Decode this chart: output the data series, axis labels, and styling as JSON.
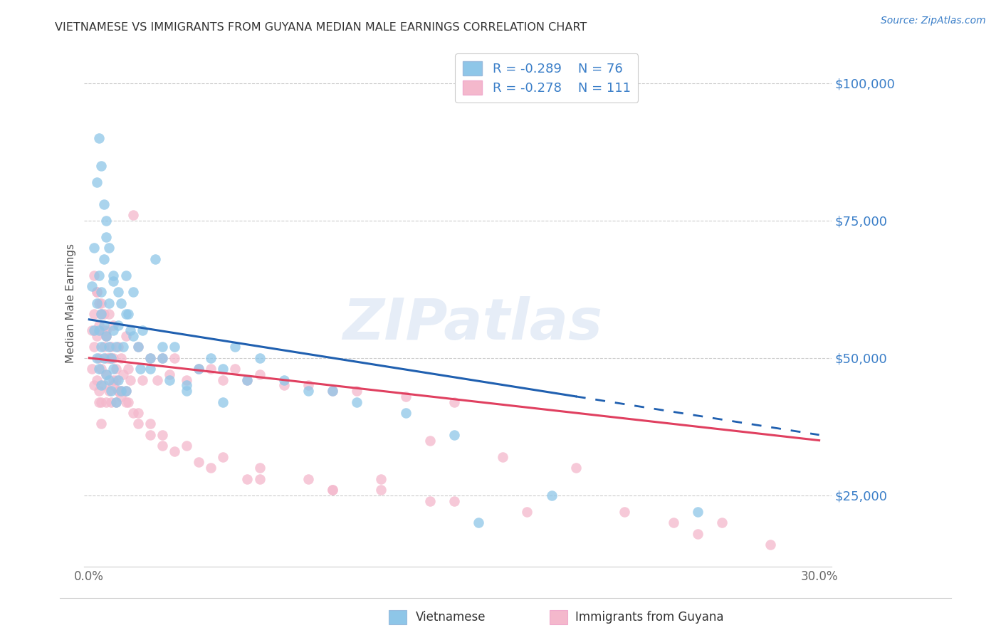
{
  "title": "VIETNAMESE VS IMMIGRANTS FROM GUYANA MEDIAN MALE EARNINGS CORRELATION CHART",
  "source": "Source: ZipAtlas.com",
  "ylabel": "Median Male Earnings",
  "xlim": [
    -0.002,
    0.305
  ],
  "ylim": [
    12000,
    108000
  ],
  "yticks": [
    25000,
    50000,
    75000,
    100000
  ],
  "ytick_labels": [
    "$25,000",
    "$50,000",
    "$75,000",
    "$100,000"
  ],
  "xticks": [
    0.0,
    0.05,
    0.1,
    0.15,
    0.2,
    0.25,
    0.3
  ],
  "xtick_labels": [
    "0.0%",
    "",
    "",
    "",
    "",
    "",
    "30.0%"
  ],
  "color_viet": "#8ec6e8",
  "color_guyana": "#f4b8cc",
  "color_viet_line": "#2060b0",
  "color_guyana_line": "#e04060",
  "color_axis_text": "#3a7ec8",
  "color_title": "#333333",
  "watermark": "ZIPatlas",
  "background": "#ffffff",
  "viet_intercept": 57000,
  "viet_slope": -70000,
  "guyana_intercept": 50000,
  "guyana_slope": -50000,
  "viet_x": [
    0.001,
    0.002,
    0.002,
    0.003,
    0.003,
    0.003,
    0.004,
    0.004,
    0.004,
    0.005,
    0.005,
    0.005,
    0.005,
    0.006,
    0.006,
    0.006,
    0.007,
    0.007,
    0.007,
    0.008,
    0.008,
    0.008,
    0.009,
    0.009,
    0.01,
    0.01,
    0.01,
    0.011,
    0.011,
    0.012,
    0.012,
    0.013,
    0.013,
    0.014,
    0.015,
    0.015,
    0.016,
    0.017,
    0.018,
    0.02,
    0.021,
    0.022,
    0.025,
    0.027,
    0.03,
    0.033,
    0.035,
    0.04,
    0.045,
    0.05,
    0.055,
    0.06,
    0.065,
    0.07,
    0.08,
    0.09,
    0.1,
    0.11,
    0.13,
    0.15,
    0.004,
    0.005,
    0.006,
    0.007,
    0.008,
    0.01,
    0.012,
    0.015,
    0.018,
    0.025,
    0.03,
    0.04,
    0.055,
    0.16,
    0.19,
    0.25
  ],
  "viet_y": [
    63000,
    70000,
    55000,
    60000,
    82000,
    50000,
    55000,
    65000,
    48000,
    58000,
    52000,
    62000,
    45000,
    56000,
    50000,
    68000,
    54000,
    47000,
    72000,
    52000,
    46000,
    60000,
    50000,
    44000,
    55000,
    48000,
    64000,
    52000,
    42000,
    56000,
    46000,
    60000,
    44000,
    52000,
    65000,
    44000,
    58000,
    55000,
    62000,
    52000,
    48000,
    55000,
    50000,
    68000,
    50000,
    46000,
    52000,
    45000,
    48000,
    50000,
    48000,
    52000,
    46000,
    50000,
    46000,
    44000,
    44000,
    42000,
    40000,
    36000,
    90000,
    85000,
    78000,
    75000,
    70000,
    65000,
    62000,
    58000,
    54000,
    48000,
    52000,
    44000,
    42000,
    20000,
    25000,
    22000
  ],
  "guyana_x": [
    0.001,
    0.001,
    0.002,
    0.002,
    0.002,
    0.003,
    0.003,
    0.003,
    0.004,
    0.004,
    0.004,
    0.004,
    0.005,
    0.005,
    0.005,
    0.005,
    0.005,
    0.006,
    0.006,
    0.006,
    0.007,
    0.007,
    0.007,
    0.007,
    0.008,
    0.008,
    0.008,
    0.009,
    0.009,
    0.01,
    0.01,
    0.01,
    0.011,
    0.011,
    0.012,
    0.012,
    0.013,
    0.013,
    0.014,
    0.015,
    0.015,
    0.016,
    0.017,
    0.018,
    0.02,
    0.022,
    0.025,
    0.028,
    0.03,
    0.033,
    0.035,
    0.04,
    0.045,
    0.05,
    0.055,
    0.06,
    0.065,
    0.07,
    0.08,
    0.09,
    0.1,
    0.11,
    0.13,
    0.15,
    0.003,
    0.005,
    0.007,
    0.009,
    0.011,
    0.013,
    0.016,
    0.02,
    0.025,
    0.03,
    0.04,
    0.055,
    0.07,
    0.09,
    0.12,
    0.002,
    0.004,
    0.006,
    0.008,
    0.012,
    0.018,
    0.025,
    0.035,
    0.05,
    0.07,
    0.1,
    0.14,
    0.18,
    0.007,
    0.01,
    0.015,
    0.02,
    0.03,
    0.045,
    0.065,
    0.1,
    0.15,
    0.22,
    0.26,
    0.2,
    0.17,
    0.14,
    0.12,
    0.25,
    0.28,
    0.24
  ],
  "guyana_y": [
    55000,
    48000,
    58000,
    45000,
    52000,
    62000,
    46000,
    54000,
    56000,
    44000,
    50000,
    42000,
    55000,
    48000,
    60000,
    42000,
    38000,
    52000,
    45000,
    58000,
    54000,
    47000,
    55000,
    42000,
    50000,
    44000,
    58000,
    52000,
    42000,
    50000,
    45000,
    56000,
    48000,
    42000,
    52000,
    44000,
    50000,
    43000,
    47000,
    54000,
    44000,
    48000,
    46000,
    76000,
    52000,
    46000,
    50000,
    46000,
    50000,
    47000,
    50000,
    46000,
    48000,
    48000,
    46000,
    48000,
    46000,
    47000,
    45000,
    45000,
    44000,
    44000,
    43000,
    42000,
    62000,
    58000,
    54000,
    50000,
    46000,
    44000,
    42000,
    40000,
    38000,
    36000,
    34000,
    32000,
    30000,
    28000,
    26000,
    65000,
    60000,
    55000,
    50000,
    44000,
    40000,
    36000,
    33000,
    30000,
    28000,
    26000,
    24000,
    22000,
    50000,
    46000,
    42000,
    38000,
    34000,
    31000,
    28000,
    26000,
    24000,
    22000,
    20000,
    30000,
    32000,
    35000,
    28000,
    18000,
    16000,
    20000
  ]
}
